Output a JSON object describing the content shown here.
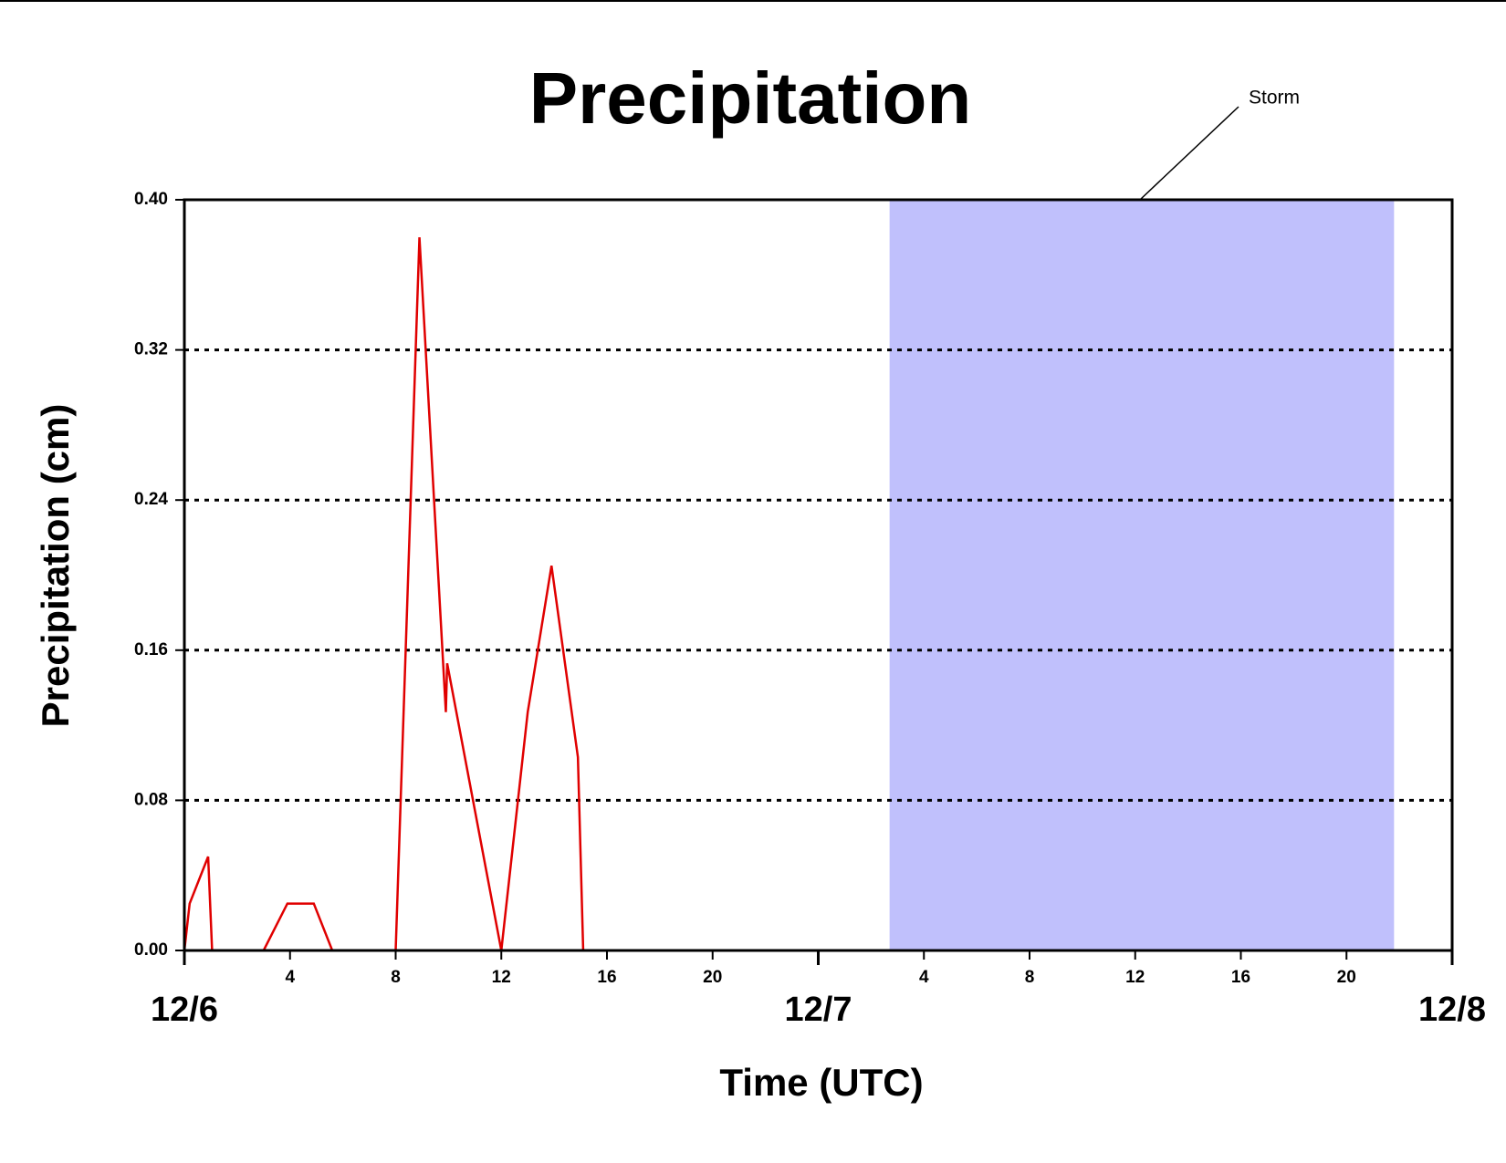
{
  "chart_data": {
    "type": "line",
    "title": "Precipitation",
    "x_label": "Time (UTC)",
    "y_label": "Precipitation (cm)",
    "x": [
      0,
      0.2,
      0.9,
      1.05,
      3,
      3.9,
      4.9,
      5.6,
      8,
      8.9,
      9.9,
      9.95,
      12,
      13,
      13.9,
      14.9,
      15.1,
      48
    ],
    "series": [
      {
        "color": "#e00000",
        "values": [
          0,
          0.025,
          0.05,
          0,
          0,
          0.025,
          0.025,
          0,
          0,
          0.38,
          0.127,
          0.153,
          0,
          0.127,
          0.205,
          0.103,
          0,
          0
        ]
      }
    ],
    "xlim": [
      0,
      48
    ],
    "xticks": [
      4,
      8,
      12,
      16,
      20,
      {
        "value": 28,
        "label": "4"
      },
      {
        "value": 32,
        "label": "8"
      },
      {
        "value": 36,
        "label": "12"
      },
      {
        "value": 40,
        "label": "16"
      },
      {
        "value": 44,
        "label": "20"
      }
    ],
    "date_ticks": [
      {
        "value": 0,
        "label": "12/6"
      },
      {
        "value": 24,
        "label": "12/7"
      },
      {
        "value": 48,
        "label": "12/8"
      }
    ],
    "ylim": [
      0,
      0.4
    ],
    "yticks": [
      {
        "value": 0,
        "label": "0.00"
      },
      {
        "value": 0.08,
        "label": "0.08"
      },
      {
        "value": 0.16,
        "label": "0.16"
      },
      {
        "value": 0.24,
        "label": "0.24"
      },
      {
        "value": 0.32,
        "label": "0.32"
      },
      {
        "value": 0.4,
        "label": "0.40"
      }
    ],
    "grid": true,
    "annotation": {
      "text": "Storm",
      "span": [
        26.7,
        45.8
      ],
      "color": "#c0c0fc"
    }
  }
}
